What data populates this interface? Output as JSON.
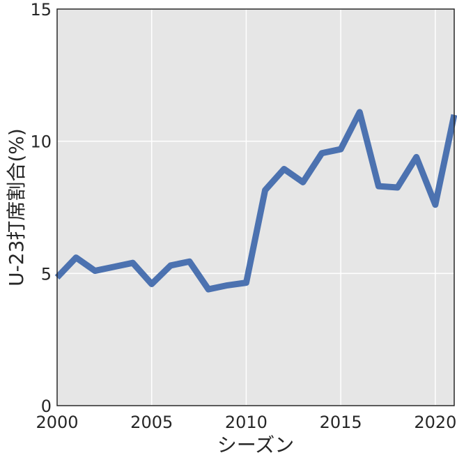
{
  "chart_data": {
    "type": "line",
    "title": "",
    "xlabel": "シーズン",
    "ylabel": "U-23打席割合(%)",
    "xlim": [
      2000,
      2021
    ],
    "ylim": [
      0,
      15
    ],
    "xticks": [
      2000,
      2005,
      2010,
      2015,
      2020
    ],
    "yticks": [
      0,
      5,
      10,
      15
    ],
    "grid": true,
    "legend": "none",
    "series": [
      {
        "color": "#4c72b0",
        "x": [
          2000,
          2001,
          2002,
          2003,
          2004,
          2005,
          2006,
          2007,
          2008,
          2009,
          2010,
          2011,
          2012,
          2013,
          2014,
          2015,
          2016,
          2017,
          2018,
          2019,
          2020,
          2021
        ],
        "values": [
          4.85,
          5.6,
          5.1,
          5.25,
          5.4,
          4.6,
          5.3,
          5.45,
          4.4,
          4.55,
          4.65,
          8.15,
          8.95,
          8.45,
          9.55,
          9.7,
          11.1,
          8.3,
          8.25,
          9.4,
          7.6,
          11.0
        ]
      }
    ],
    "colors": {
      "plot_background": "#e6e6e6",
      "grid": "#ffffff",
      "axis_frame": "#262626",
      "text": "#262626"
    }
  }
}
